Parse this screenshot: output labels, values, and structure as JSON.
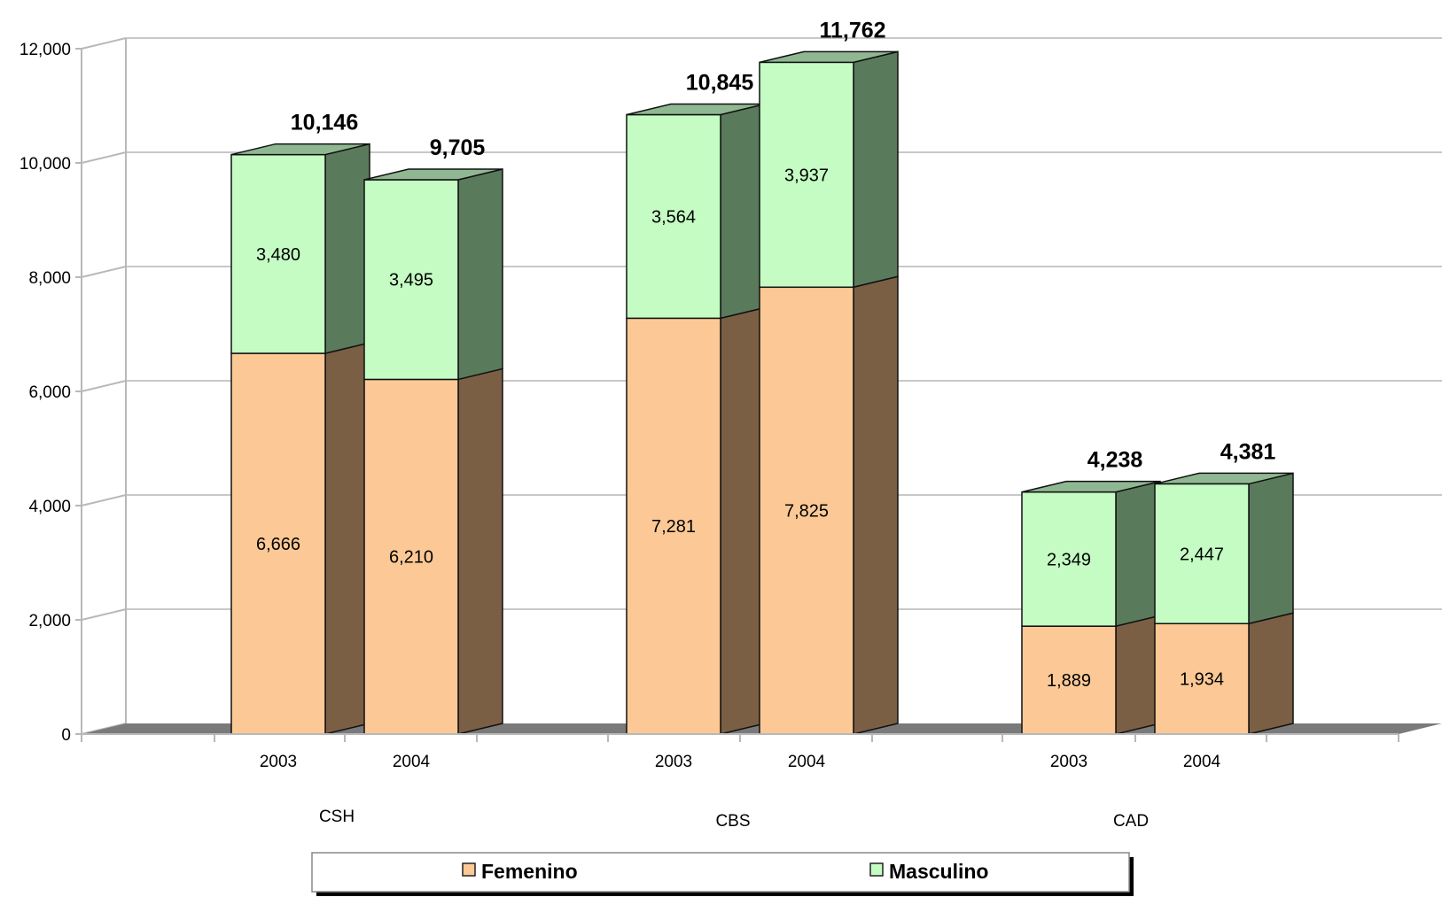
{
  "chart_data": {
    "type": "bar",
    "stacked": true,
    "three_d": true,
    "title": "",
    "xlabel": "",
    "ylabel": "",
    "ylim": [
      0,
      12000
    ],
    "y_ticks": [
      0,
      2000,
      4000,
      6000,
      8000,
      10000,
      12000
    ],
    "y_tick_labels": [
      "0",
      "2,000",
      "4,000",
      "6,000",
      "8,000",
      "10,000",
      "12,000"
    ],
    "grid": true,
    "groups": [
      {
        "name": "CSH",
        "bars": [
          {
            "year": "2003",
            "femenino": 6666,
            "masculino": 3480,
            "total": 10146,
            "labels": {
              "femenino": "6,666",
              "masculino": "3,480",
              "total": "10,146"
            }
          },
          {
            "year": "2004",
            "femenino": 6210,
            "masculino": 3495,
            "total": 9705,
            "labels": {
              "femenino": "6,210",
              "masculino": "3,495",
              "total": "9,705"
            }
          }
        ]
      },
      {
        "name": "CBS",
        "bars": [
          {
            "year": "2003",
            "femenino": 7281,
            "masculino": 3564,
            "total": 10845,
            "labels": {
              "femenino": "7,281",
              "masculino": "3,564",
              "total": "10,845"
            }
          },
          {
            "year": "2004",
            "femenino": 7825,
            "masculino": 3937,
            "total": 11762,
            "labels": {
              "femenino": "7,825",
              "masculino": "3,937",
              "total": "11,762"
            }
          }
        ]
      },
      {
        "name": "CAD",
        "bars": [
          {
            "year": "2003",
            "femenino": 1889,
            "masculino": 2349,
            "total": 4238,
            "labels": {
              "femenino": "1,889",
              "masculino": "2,349",
              "total": "4,238"
            }
          },
          {
            "year": "2004",
            "femenino": 1934,
            "masculino": 2447,
            "total": 4381,
            "labels": {
              "femenino": "1,934",
              "masculino": "2,447",
              "total": "4,381"
            }
          }
        ]
      }
    ],
    "series": [
      {
        "key": "femenino",
        "name": "Femenino",
        "color": "#fcc996",
        "side_color": "#7b5f45",
        "top_color": "#b08a66"
      },
      {
        "key": "masculino",
        "name": "Masculino",
        "color": "#c4fcc4",
        "side_color": "#5a7a5c",
        "top_color": "#8fb892"
      }
    ],
    "legend_position": "bottom"
  }
}
